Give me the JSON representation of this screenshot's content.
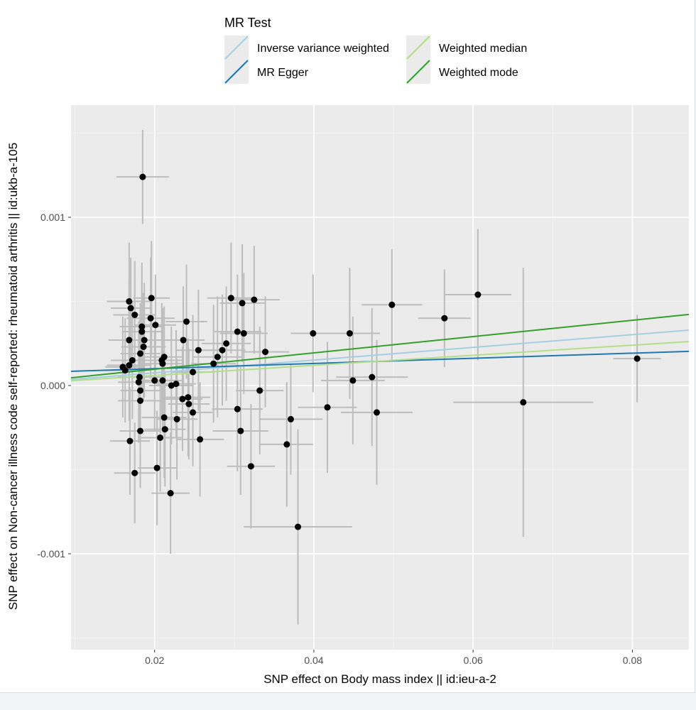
{
  "chart_data": {
    "type": "scatter",
    "title": "",
    "xlabel": "SNP effect on Body mass index || id:ieu-a-2",
    "ylabel": "SNP effect on Non-cancer illness code  self-reported: rheumatoid arthritis || id:ukb-a-105",
    "xlim": [
      0.0095,
      0.0871
    ],
    "ylim": [
      -0.00157,
      0.001667
    ],
    "xticks": [
      {
        "v": 0.02,
        "label": "0.02"
      },
      {
        "v": 0.04,
        "label": "0.04"
      },
      {
        "v": 0.06,
        "label": "0.06"
      },
      {
        "v": 0.08,
        "label": "0.08"
      }
    ],
    "yticks": [
      {
        "v": 0.001,
        "label": "0.001"
      },
      {
        "v": 0.0,
        "label": "0.000"
      },
      {
        "v": -0.001,
        "label": "-0.001"
      }
    ],
    "grid": true,
    "legend": {
      "title": "MR Test",
      "placement": "top",
      "entries": [
        "Inverse variance weighted",
        "Weighted median",
        "MR Egger",
        "Weighted mode"
      ]
    },
    "lines": [
      {
        "name": "Inverse variance weighted",
        "intercept": 0,
        "slope": 0.00378,
        "color": "#a6cee3"
      },
      {
        "name": "MR Egger",
        "intercept": 7e-05,
        "slope": 0.00153,
        "color": "#1f78b4"
      },
      {
        "name": "Weighted median",
        "intercept": 0,
        "slope": 0.003,
        "color": "#b2df8a"
      },
      {
        "name": "Weighted mode",
        "intercept": 0,
        "slope": 0.00485,
        "color": "#33a02c"
      }
    ],
    "points_fields": [
      "x",
      "y",
      "x_se",
      "y_se"
    ],
    "points": [
      [
        0.0185,
        0.00124,
        0.0033,
        0.00028
      ],
      [
        0.0168,
        0.0005,
        0.0028,
        0.00035
      ],
      [
        0.017,
        0.00046,
        0.0025,
        0.0003
      ],
      [
        0.0175,
        0.00042,
        0.0027,
        0.00032
      ],
      [
        0.0196,
        0.00052,
        0.0023,
        0.00034
      ],
      [
        0.0195,
        0.0004,
        0.003,
        0.00036
      ],
      [
        0.0201,
        0.00036,
        0.0026,
        0.0003
      ],
      [
        0.0184,
        0.00035,
        0.0028,
        0.00038
      ],
      [
        0.0184,
        0.00032,
        0.0024,
        0.0003
      ],
      [
        0.0187,
        0.00027,
        0.003,
        0.00034
      ],
      [
        0.0168,
        0.00027,
        0.0026,
        0.00036
      ],
      [
        0.0186,
        0.00023,
        0.0028,
        0.00032
      ],
      [
        0.0182,
        0.00019,
        0.0025,
        0.0003
      ],
      [
        0.0172,
        0.00015,
        0.0027,
        0.00035
      ],
      [
        0.016,
        0.00011,
        0.0022,
        0.0003
      ],
      [
        0.0168,
        0.00012,
        0.0028,
        0.00033
      ],
      [
        0.0163,
        9e-05,
        0.0025,
        0.00031
      ],
      [
        0.0181,
        5e-05,
        0.0027,
        0.00034
      ],
      [
        0.02,
        3e-05,
        0.0024,
        0.0003
      ],
      [
        0.018,
        2e-05,
        0.0026,
        0.00036
      ],
      [
        0.0182,
        -3e-05,
        0.0025,
        0.00032
      ],
      [
        0.0182,
        -9e-05,
        0.0028,
        0.00035
      ],
      [
        0.0182,
        -0.00027,
        0.0026,
        0.00034
      ],
      [
        0.0169,
        -0.00033,
        0.0025,
        0.00032
      ],
      [
        0.0175,
        -0.00052,
        0.0026,
        0.0003
      ],
      [
        0.0203,
        -0.00049,
        0.0024,
        0.00034
      ],
      [
        0.0207,
        -0.00031,
        0.0027,
        0.00032
      ],
      [
        0.0213,
        -0.00026,
        0.0026,
        0.00034
      ],
      [
        0.0212,
        -0.00019,
        0.0028,
        0.00036
      ],
      [
        0.021,
        3e-05,
        0.0025,
        0.00031
      ],
      [
        0.0209,
        0.00015,
        0.0027,
        0.00034
      ],
      [
        0.0212,
        0.00017,
        0.0024,
        0.0003
      ],
      [
        0.021,
        0.00013,
        0.0026,
        0.00033
      ],
      [
        0.0221,
        0.0,
        0.0028,
        0.00035
      ],
      [
        0.0227,
        1e-05,
        0.0025,
        0.00032
      ],
      [
        0.0228,
        -0.0002,
        0.0026,
        0.00036
      ],
      [
        0.022,
        -0.00064,
        0.0024,
        0.00036
      ],
      [
        0.0236,
        0.00027,
        0.0027,
        0.00032
      ],
      [
        0.024,
        0.00038,
        0.0026,
        0.00034
      ],
      [
        0.0235,
        -8e-05,
        0.0025,
        0.00031
      ],
      [
        0.0242,
        -7e-05,
        0.0028,
        0.00035
      ],
      [
        0.0243,
        -0.00011,
        0.0026,
        0.00033
      ],
      [
        0.0248,
        8e-05,
        0.0027,
        0.00034
      ],
      [
        0.0248,
        -0.00016,
        0.0025,
        0.00032
      ],
      [
        0.0255,
        0.00021,
        0.0029,
        0.00036
      ],
      [
        0.0257,
        -0.00032,
        0.003,
        0.00034
      ],
      [
        0.0296,
        0.00052,
        0.003,
        0.00033
      ],
      [
        0.031,
        0.00049,
        0.0028,
        0.00035
      ],
      [
        0.0325,
        0.00051,
        0.0032,
        0.00032
      ],
      [
        0.0304,
        0.00032,
        0.003,
        0.00034
      ],
      [
        0.0312,
        0.00031,
        0.003,
        0.00036
      ],
      [
        0.029,
        0.00025,
        0.0031,
        0.00034
      ],
      [
        0.0285,
        0.00021,
        0.0029,
        0.00033
      ],
      [
        0.0279,
        0.00017,
        0.003,
        0.00036
      ],
      [
        0.0274,
        0.00013,
        0.0028,
        0.00035
      ],
      [
        0.0339,
        0.0002,
        0.003,
        0.00033
      ],
      [
        0.0399,
        0.00031,
        0.0028,
        0.00035
      ],
      [
        0.0445,
        0.00031,
        0.0038,
        0.00039
      ],
      [
        0.0498,
        0.00048,
        0.0038,
        0.00033
      ],
      [
        0.0332,
        -3e-05,
        0.003,
        0.00038
      ],
      [
        0.0304,
        -0.00014,
        0.0032,
        0.00037
      ],
      [
        0.0308,
        -0.00027,
        0.0035,
        0.00038
      ],
      [
        0.0321,
        -0.00048,
        0.003,
        0.00037
      ],
      [
        0.0371,
        -0.0002,
        0.004,
        0.00033
      ],
      [
        0.0366,
        -0.00035,
        0.0033,
        0.00037
      ],
      [
        0.038,
        -0.00084,
        0.0068,
        0.00058
      ],
      [
        0.0417,
        -0.00013,
        0.0037,
        0.00039
      ],
      [
        0.0449,
        3e-05,
        0.004,
        0.00038
      ],
      [
        0.0473,
        5e-05,
        0.0045,
        0.00041
      ],
      [
        0.0479,
        -0.00016,
        0.0045,
        0.00043
      ],
      [
        0.0564,
        0.0004,
        0.0033,
        0.00029
      ],
      [
        0.0606,
        0.00054,
        0.0042,
        0.00039
      ],
      [
        0.0663,
        -0.0001,
        0.0088,
        0.0008
      ],
      [
        0.0806,
        0.00016,
        0.003,
        0.00026
      ]
    ],
    "colors": {
      "panel": "#ebebeb",
      "point": "#000000",
      "errorbar": "#bdbdbd"
    }
  }
}
